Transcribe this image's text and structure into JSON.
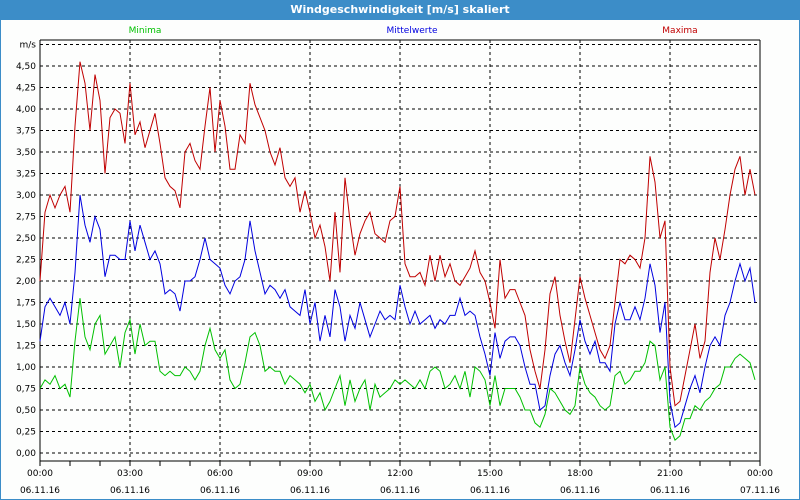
{
  "window": {
    "title": "Windgeschwindigkeit [m/s] skaliert"
  },
  "chart_data": {
    "type": "line",
    "title": "Windgeschwindigkeit [m/s] skaliert",
    "ylabel": "m/s",
    "ylim": [
      0,
      4.75
    ],
    "yticks": [
      "0,00",
      "0,25",
      "0,50",
      "0,75",
      "1,00",
      "1,25",
      "1,50",
      "1,75",
      "2,00",
      "2,25",
      "2,50",
      "2,75",
      "3,00",
      "3,25",
      "3,50",
      "3,75",
      "4,00",
      "4,25",
      "4,50"
    ],
    "xticks": [
      {
        "time": "00:00",
        "date": "06.11.16"
      },
      {
        "time": "03:00",
        "date": "06.11.16"
      },
      {
        "time": "06:00",
        "date": "06.11.16"
      },
      {
        "time": "09:00",
        "date": "06.11.16"
      },
      {
        "time": "12:00",
        "date": "06.11.16"
      },
      {
        "time": "15:00",
        "date": "06.11.16"
      },
      {
        "time": "18:00",
        "date": "06.11.16"
      },
      {
        "time": "21:00",
        "date": "06.11.16"
      },
      {
        "time": "00:00",
        "date": "07.11.16"
      }
    ],
    "x_interval_minutes": 10,
    "grid": true,
    "series": [
      {
        "name": "Minima",
        "color": "#00c000",
        "legend_pos": "left",
        "values": [
          0.75,
          0.85,
          0.8,
          0.9,
          0.75,
          0.8,
          0.65,
          1.3,
          1.8,
          1.35,
          1.2,
          1.5,
          1.6,
          1.15,
          1.25,
          1.35,
          1.0,
          1.4,
          1.55,
          1.15,
          1.5,
          1.25,
          1.3,
          1.3,
          0.95,
          0.9,
          0.95,
          0.9,
          0.9,
          1.0,
          0.95,
          0.85,
          0.95,
          1.25,
          1.45,
          1.2,
          1.1,
          1.2,
          0.85,
          0.75,
          0.8,
          1.05,
          1.35,
          1.4,
          1.25,
          0.95,
          1.0,
          0.95,
          0.95,
          0.8,
          0.9,
          0.85,
          0.8,
          0.7,
          0.8,
          0.6,
          0.7,
          0.5,
          0.6,
          0.75,
          0.9,
          0.55,
          0.85,
          0.6,
          0.75,
          0.85,
          0.5,
          0.8,
          0.65,
          0.7,
          0.75,
          0.85,
          0.8,
          0.85,
          0.8,
          0.75,
          0.85,
          0.75,
          0.95,
          1.0,
          0.95,
          0.75,
          0.8,
          0.9,
          0.75,
          0.95,
          0.65,
          1.0,
          0.95,
          0.85,
          0.55,
          0.9,
          0.55,
          0.75,
          0.75,
          0.75,
          0.65,
          0.5,
          0.5,
          0.35,
          0.3,
          0.45,
          0.75,
          0.7,
          0.6,
          0.5,
          0.45,
          0.55,
          1.0,
          0.8,
          0.7,
          0.65,
          0.55,
          0.5,
          0.55,
          0.9,
          0.95,
          0.8,
          0.85,
          0.95,
          0.95,
          1.05,
          1.3,
          1.25,
          0.85,
          1.0,
          0.3,
          0.15,
          0.2,
          0.4,
          0.4,
          0.55,
          0.5,
          0.6,
          0.65,
          0.75,
          0.8,
          1.0,
          1.0,
          1.1,
          1.15,
          1.1,
          1.05,
          0.85
        ]
      },
      {
        "name": "Mittelwerte",
        "color": "#0000e0",
        "legend_pos": "center",
        "values": [
          1.3,
          1.7,
          1.8,
          1.7,
          1.6,
          1.75,
          1.5,
          2.1,
          3.0,
          2.65,
          2.45,
          2.75,
          2.6,
          2.05,
          2.3,
          2.3,
          2.25,
          2.25,
          2.7,
          2.35,
          2.65,
          2.45,
          2.25,
          2.35,
          2.2,
          1.85,
          1.9,
          1.85,
          1.65,
          2.0,
          2.0,
          2.05,
          2.25,
          2.5,
          2.25,
          2.2,
          2.15,
          1.95,
          1.85,
          2.0,
          2.05,
          2.25,
          2.7,
          2.35,
          2.1,
          1.85,
          1.95,
          1.9,
          1.8,
          1.9,
          1.7,
          1.65,
          1.6,
          1.9,
          1.5,
          1.75,
          1.3,
          1.6,
          1.35,
          1.9,
          1.7,
          1.3,
          1.6,
          1.45,
          1.75,
          1.55,
          1.35,
          1.5,
          1.65,
          1.55,
          1.6,
          1.55,
          1.95,
          1.7,
          1.5,
          1.65,
          1.5,
          1.55,
          1.6,
          1.45,
          1.55,
          1.5,
          1.6,
          1.6,
          1.8,
          1.6,
          1.65,
          1.6,
          1.35,
          1.15,
          0.9,
          1.4,
          1.1,
          1.3,
          1.35,
          1.35,
          1.25,
          1.0,
          0.8,
          0.8,
          0.5,
          0.55,
          0.9,
          1.15,
          1.25,
          1.05,
          0.9,
          1.2,
          1.55,
          1.3,
          1.15,
          1.3,
          1.05,
          1.05,
          0.95,
          1.5,
          1.75,
          1.55,
          1.55,
          1.7,
          1.55,
          1.8,
          2.2,
          1.95,
          1.4,
          1.75,
          0.6,
          0.3,
          0.35,
          0.55,
          0.75,
          0.9,
          0.7,
          1.0,
          1.25,
          1.35,
          1.25,
          1.6,
          1.75,
          2.0,
          2.2,
          2.0,
          2.15,
          1.75
        ]
      },
      {
        "name": "Maxima",
        "color": "#c00000",
        "legend_pos": "right",
        "values": [
          2.0,
          2.8,
          3.0,
          2.85,
          3.0,
          3.1,
          2.8,
          3.8,
          4.55,
          4.3,
          3.75,
          4.4,
          4.1,
          3.25,
          3.9,
          4.0,
          3.95,
          3.6,
          4.3,
          3.7,
          3.85,
          3.55,
          3.75,
          3.95,
          3.6,
          3.2,
          3.1,
          3.05,
          2.85,
          3.5,
          3.6,
          3.4,
          3.3,
          3.8,
          4.25,
          3.5,
          4.1,
          3.8,
          3.3,
          3.3,
          3.7,
          3.6,
          4.3,
          4.05,
          3.9,
          3.75,
          3.5,
          3.35,
          3.55,
          3.2,
          3.1,
          3.2,
          2.8,
          3.05,
          2.8,
          2.5,
          2.65,
          2.4,
          2.0,
          2.8,
          2.1,
          3.2,
          2.7,
          2.3,
          2.55,
          2.7,
          2.8,
          2.55,
          2.5,
          2.45,
          2.7,
          2.75,
          3.1,
          2.2,
          2.05,
          2.05,
          2.1,
          1.95,
          2.3,
          2.0,
          2.3,
          2.05,
          2.2,
          2.0,
          1.95,
          2.05,
          2.15,
          2.35,
          2.1,
          2.0,
          1.75,
          1.45,
          2.25,
          1.8,
          1.9,
          1.9,
          1.75,
          1.6,
          1.2,
          0.95,
          0.75,
          1.2,
          1.85,
          2.05,
          1.6,
          1.3,
          1.05,
          1.55,
          2.05,
          1.8,
          1.6,
          1.4,
          1.2,
          1.1,
          1.25,
          1.75,
          2.25,
          2.2,
          2.3,
          2.25,
          2.15,
          2.5,
          3.45,
          3.15,
          2.5,
          2.7,
          1.0,
          0.55,
          0.6,
          0.9,
          1.2,
          1.5,
          1.1,
          1.3,
          2.1,
          2.5,
          2.25,
          2.6,
          3.0,
          3.3,
          3.45,
          3.0,
          3.3,
          3.0
        ]
      }
    ]
  }
}
